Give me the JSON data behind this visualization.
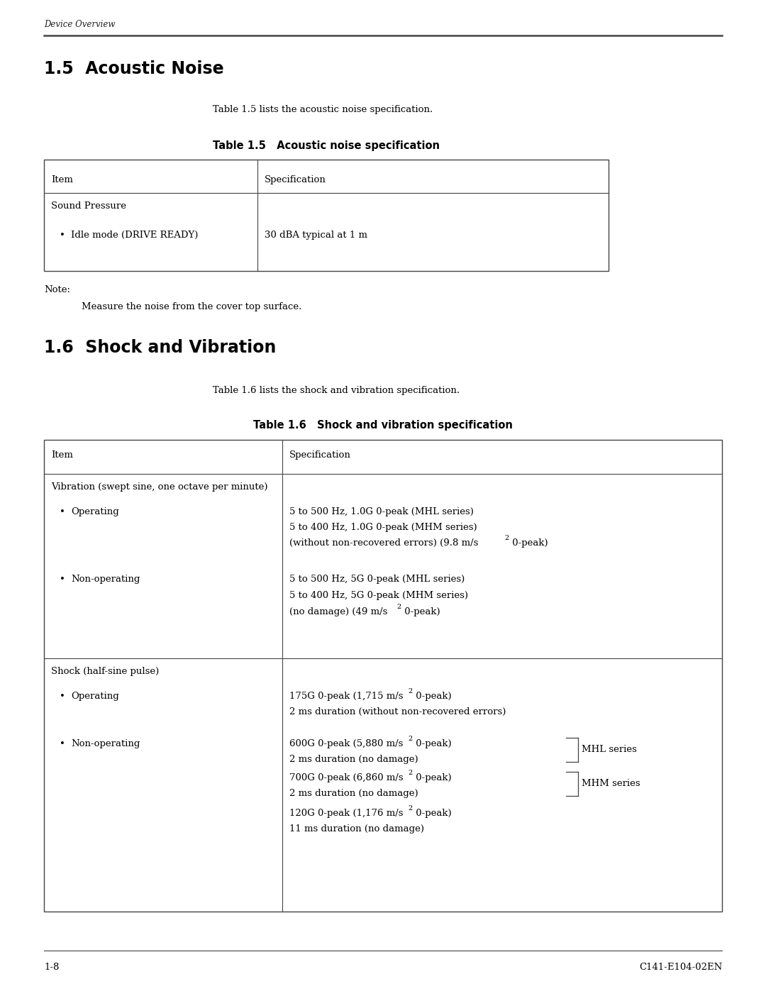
{
  "page_width": 10.8,
  "page_height": 13.97,
  "bg_color": "#ffffff",
  "header_italic": "Device Overview",
  "footer_left": "1-8",
  "footer_right": "C141-E104-02EN",
  "section1_title": "1.5  Acoustic Noise",
  "section1_intro": "Table 1.5 lists the acoustic noise specification.",
  "table1_title": "Table 1.5   Acoustic noise specification",
  "table2_title": "Table 1.6   Shock and vibration specification",
  "section2_title": "1.6  Shock and Vibration",
  "section2_intro": "Table 1.6 lists the shock and vibration specification.",
  "note_label": "Note:",
  "note_text": "Measure the noise from the cover top surface."
}
